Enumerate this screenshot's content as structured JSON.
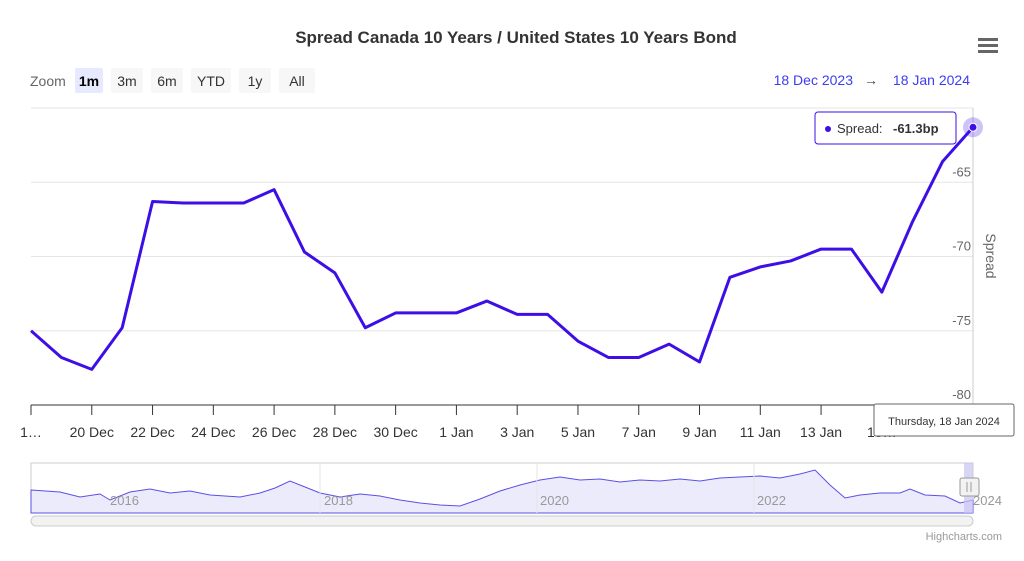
{
  "chart_data": {
    "type": "line",
    "title": "Spread Canada 10 Years / United States 10 Years Bond",
    "zoom_label": "Zoom",
    "zoom_buttons": [
      "1m",
      "3m",
      "6m",
      "YTD",
      "1y",
      "All"
    ],
    "selected_zoom": "1m",
    "range": {
      "from": "18 Dec 2023",
      "arrow": "→",
      "to": "18 Jan 2024"
    },
    "y_axis_title": "Spread",
    "categories": [
      "1…",
      null,
      "20 Dec",
      null,
      "22 Dec",
      null,
      "24 Dec",
      null,
      "26 Dec",
      null,
      "28 Dec",
      null,
      "30 Dec",
      null,
      "1 Jan",
      null,
      "3 Jan",
      null,
      "5 Jan",
      null,
      "7 Jan",
      null,
      "9 Jan",
      null,
      "11 Jan",
      null,
      "13 Jan",
      null,
      "15…",
      null,
      null,
      null
    ],
    "series": [
      {
        "name": "Spread",
        "color": "#3d0fe6",
        "values": [
          -75.0,
          -76.8,
          -77.6,
          -74.8,
          -66.3,
          -66.4,
          -66.4,
          -66.4,
          -65.5,
          -69.7,
          -71.1,
          -74.8,
          -73.8,
          -73.8,
          -73.8,
          -73.0,
          -73.9,
          -73.9,
          -75.7,
          -76.8,
          -76.8,
          -75.9,
          -77.1,
          -71.4,
          -70.7,
          -70.3,
          -69.5,
          -69.5,
          -72.4,
          -67.7,
          -63.6,
          -61.3
        ]
      }
    ],
    "ylim": [
      -80,
      -60
    ],
    "yticks": [
      -80,
      -75,
      -70,
      -65
    ],
    "grid": true,
    "tooltip": {
      "label": "Spread:",
      "value": "-61.3bp",
      "date": "Thursday, 18 Jan 2024"
    },
    "navigator_years": [
      "2016",
      "2018",
      "2020",
      "2022",
      "2024"
    ],
    "credits": "Highcharts.com"
  }
}
